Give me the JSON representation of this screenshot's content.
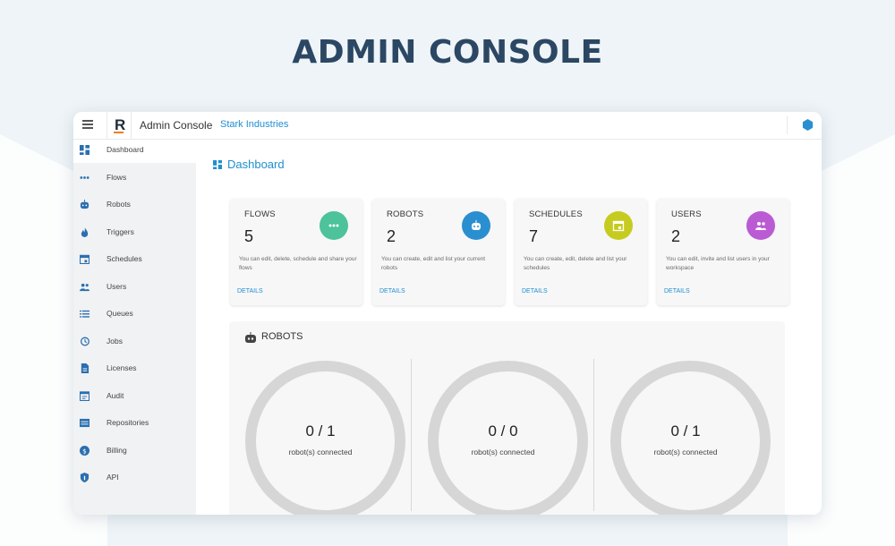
{
  "hero": {
    "title": "ADMIN CONSOLE"
  },
  "topbar": {
    "logo_letter": "R",
    "app_title": "Admin Console",
    "organization": "Stark Industries"
  },
  "sidebar": {
    "items": [
      {
        "label": "Dashboard",
        "icon": "dashboard-icon",
        "active": true
      },
      {
        "label": "Flows",
        "icon": "flows-icon"
      },
      {
        "label": "Robots",
        "icon": "robot-icon"
      },
      {
        "label": "Triggers",
        "icon": "fire-icon"
      },
      {
        "label": "Schedules",
        "icon": "calendar-icon"
      },
      {
        "label": "Users",
        "icon": "users-icon"
      },
      {
        "label": "Queues",
        "icon": "list-icon"
      },
      {
        "label": "Jobs",
        "icon": "history-icon"
      },
      {
        "label": "Licenses",
        "icon": "document-icon"
      },
      {
        "label": "Audit",
        "icon": "audit-icon"
      },
      {
        "label": "Repositories",
        "icon": "repository-icon"
      },
      {
        "label": "Billing",
        "icon": "dollar-icon"
      },
      {
        "label": "API",
        "icon": "shield-icon"
      }
    ]
  },
  "main": {
    "title": "Dashboard",
    "cards": [
      {
        "title": "FLOWS",
        "count": "5",
        "desc": "You can edit, delete, schedule and share your flows",
        "link": "DETAILS",
        "icon_color": "#4cc39a"
      },
      {
        "title": "ROBOTS",
        "count": "2",
        "desc": "You can create, edit and list your current robots",
        "link": "DETAILS",
        "icon_color": "#2a8fd0"
      },
      {
        "title": "SCHEDULES",
        "count": "7",
        "desc": "You can create, edit, delete and list your schedules",
        "link": "DETAILS",
        "icon_color": "#c6cc1f"
      },
      {
        "title": "USERS",
        "count": "2",
        "desc": "You can edit, invite and list users in your workspace",
        "link": "DETAILS",
        "icon_color": "#bb5bd4"
      }
    ],
    "robots_panel": {
      "title": "ROBOTS",
      "gauges": [
        {
          "value": "0 / 1",
          "label": "robot(s) connected"
        },
        {
          "value": "0 / 0",
          "label": "robot(s) connected"
        },
        {
          "value": "0 / 1",
          "label": "robot(s) connected"
        }
      ]
    }
  },
  "colors": {
    "accent": "#1f8fcf",
    "heading": "#2b4763",
    "sidebar_bg": "#f1f2f3"
  }
}
